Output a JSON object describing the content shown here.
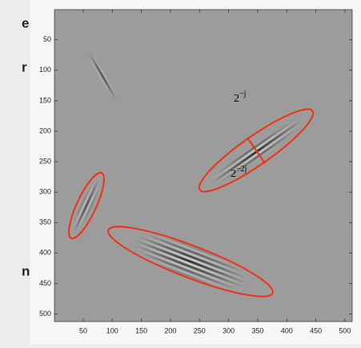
{
  "slide_fragments": [
    "e",
    "r",
    "n"
  ],
  "chart_data": {
    "type": "image",
    "xlim": [
      0.5,
      512.5
    ],
    "ylim": [
      0.5,
      512.5
    ],
    "y_reversed": true,
    "xticks": [
      50,
      100,
      150,
      200,
      250,
      300,
      350,
      400,
      450,
      500
    ],
    "yticks": [
      50,
      100,
      150,
      200,
      250,
      300,
      350,
      400,
      450,
      500
    ],
    "annotations": [
      {
        "base": "2",
        "exponent": "−j"
      },
      {
        "base": "2",
        "exponent": "−2j"
      }
    ]
  }
}
